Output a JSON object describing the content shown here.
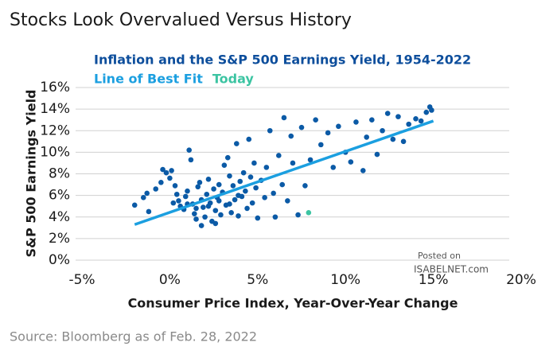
{
  "chart_data": {
    "type": "scatter",
    "title": "Stocks Look Overvalued Versus History",
    "subtitle": "Inflation and the S&P 500 Earnings Yield, 1954-2022",
    "x_label": "Consumer Price Index, Year-Over-Year Change",
    "y_label": "S&P 500 Earnings Yield",
    "source": "Source: Bloomberg as of Feb. 28, 2022",
    "watermark": [
      "Posted on",
      "ISABELNET.com"
    ],
    "xlim": [
      -5,
      20
    ],
    "ylim": [
      0,
      16
    ],
    "xticks": [
      {
        "value": -5,
        "label": "-5%"
      },
      {
        "value": 0,
        "label": "0%"
      },
      {
        "value": 5,
        "label": "5%"
      },
      {
        "value": 10,
        "label": "10%"
      },
      {
        "value": 15,
        "label": "15%"
      },
      {
        "value": 20,
        "label": "20%"
      }
    ],
    "yticks": [
      {
        "value": 0,
        "label": "0%"
      },
      {
        "value": 2,
        "label": "2%"
      },
      {
        "value": 4,
        "label": "4%"
      },
      {
        "value": 6,
        "label": "6%"
      },
      {
        "value": 8,
        "label": "8%"
      },
      {
        "value": 10,
        "label": "10%"
      },
      {
        "value": 12,
        "label": "12%"
      },
      {
        "value": 14,
        "label": "14%"
      },
      {
        "value": 16,
        "label": "16%"
      }
    ],
    "grid": true,
    "series": [
      {
        "color": "#0b5aa6",
        "kind": "points",
        "x": [
          -2,
          -1.5,
          -1.3,
          -1.2,
          -0.8,
          -0.5,
          -0.4,
          -0.2,
          0,
          0.1,
          0.3,
          0.4,
          0.5,
          0.6,
          0.8,
          0.9,
          1.0,
          1.1,
          1.2,
          1.3,
          1.4,
          1.5,
          1.6,
          1.7,
          1.8,
          1.9,
          2.0,
          2.1,
          2.2,
          2.3,
          2.4,
          2.5,
          2.6,
          2.7,
          2.8,
          2.9,
          3.0,
          3.1,
          3.2,
          3.3,
          3.4,
          3.5,
          3.6,
          3.7,
          3.8,
          3.9,
          4.0,
          4.1,
          4.2,
          4.3,
          4.4,
          4.5,
          4.6,
          4.7,
          4.8,
          4.9,
          5.0,
          5.2,
          5.4,
          5.5,
          5.7,
          5.9,
          6.0,
          6.2,
          6.4,
          6.5,
          6.7,
          6.9,
          7.0,
          7.3,
          7.5,
          7.7,
          8.0,
          8.3,
          8.6,
          9.0,
          9.3,
          9.6,
          10.0,
          10.3,
          10.6,
          11.0,
          11.2,
          11.5,
          11.8,
          12.1,
          12.4,
          12.7,
          13.0,
          13.3,
          13.6,
          14.0,
          14.3,
          14.6,
          14.8,
          14.9,
          1.5,
          2.2,
          2.8,
          3.4,
          3.9,
          0.2,
          1.0,
          2.6,
          1.8
        ],
        "values": [
          5.1,
          5.8,
          6.2,
          4.5,
          6.6,
          7.2,
          8.4,
          8.1,
          7.6,
          8.3,
          6.9,
          6.1,
          5.5,
          5.0,
          4.7,
          5.9,
          6.4,
          10.2,
          9.3,
          5.2,
          4.3,
          3.8,
          6.8,
          7.2,
          5.6,
          4.9,
          4.0,
          6.1,
          7.5,
          5.3,
          3.6,
          6.6,
          4.6,
          5.8,
          7.0,
          4.2,
          6.3,
          8.8,
          5.1,
          9.5,
          7.8,
          4.4,
          6.9,
          5.6,
          10.8,
          4.1,
          7.3,
          5.9,
          8.1,
          6.4,
          4.8,
          11.2,
          7.7,
          5.3,
          9.0,
          6.7,
          3.9,
          7.4,
          5.8,
          8.6,
          12.0,
          6.2,
          4.0,
          9.7,
          7.0,
          13.2,
          5.5,
          11.5,
          9.0,
          4.2,
          12.3,
          6.9,
          9.3,
          13.0,
          10.7,
          11.8,
          8.6,
          12.4,
          10.0,
          9.1,
          12.8,
          8.3,
          11.4,
          13.0,
          9.8,
          12.0,
          13.6,
          11.2,
          13.3,
          11.0,
          12.6,
          13.1,
          12.9,
          13.7,
          14.2,
          13.9,
          4.8,
          5.0,
          5.5,
          5.2,
          6.0,
          5.3,
          5.2,
          3.4,
          3.2
        ]
      },
      {
        "name": "Line of Best Fit",
        "color": "#1b9fe0",
        "kind": "line",
        "x": [
          -2,
          15
        ],
        "values": [
          3.3,
          12.9
        ]
      },
      {
        "name": "Today",
        "color": "#3cc4a2",
        "kind": "points",
        "x": [
          7.9
        ],
        "values": [
          4.4
        ]
      }
    ]
  }
}
